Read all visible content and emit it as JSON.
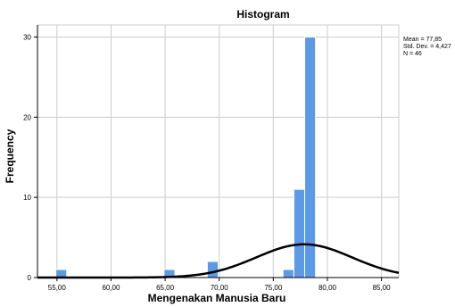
{
  "chart_data": {
    "type": "bar",
    "title": "Histogram",
    "xlabel": "Mengenakan Manusia Baru",
    "ylabel": "Frequency",
    "x_range": [
      53.2,
      86.6
    ],
    "y_range": [
      0,
      31.5
    ],
    "x_ticks": [
      55,
      60,
      65,
      70,
      75,
      80,
      85
    ],
    "x_tick_labels": [
      "55,00",
      "60,00",
      "65,00",
      "70,00",
      "75,00",
      "80,00",
      "85,00"
    ],
    "y_ticks": [
      0,
      10,
      20,
      30
    ],
    "y_tick_labels": [
      "0",
      "10",
      "20",
      "30"
    ],
    "bin_width": 1,
    "bins": [
      {
        "x_start": 54.9,
        "x_end": 55.9,
        "count": 1
      },
      {
        "x_start": 64.9,
        "x_end": 65.9,
        "count": 1
      },
      {
        "x_start": 68.9,
        "x_end": 69.9,
        "count": 2
      },
      {
        "x_start": 75.9,
        "x_end": 76.9,
        "count": 1
      },
      {
        "x_start": 76.9,
        "x_end": 77.9,
        "count": 11
      },
      {
        "x_start": 77.9,
        "x_end": 78.9,
        "count": 30
      }
    ],
    "normal_curve": {
      "mean": 77.85,
      "std_dev": 4.427,
      "n": 46
    },
    "stats_lines": [
      "Mean = 77,85",
      "Std. Dev. = 4,427",
      "N = 46"
    ],
    "grid": true,
    "legend_position": "top-right",
    "colors": {
      "bar_fill": "#5b9ae6",
      "bar_stroke": "#ffffff",
      "curve": "#000000",
      "grid": "#cccccc",
      "axis": "#000000"
    }
  }
}
